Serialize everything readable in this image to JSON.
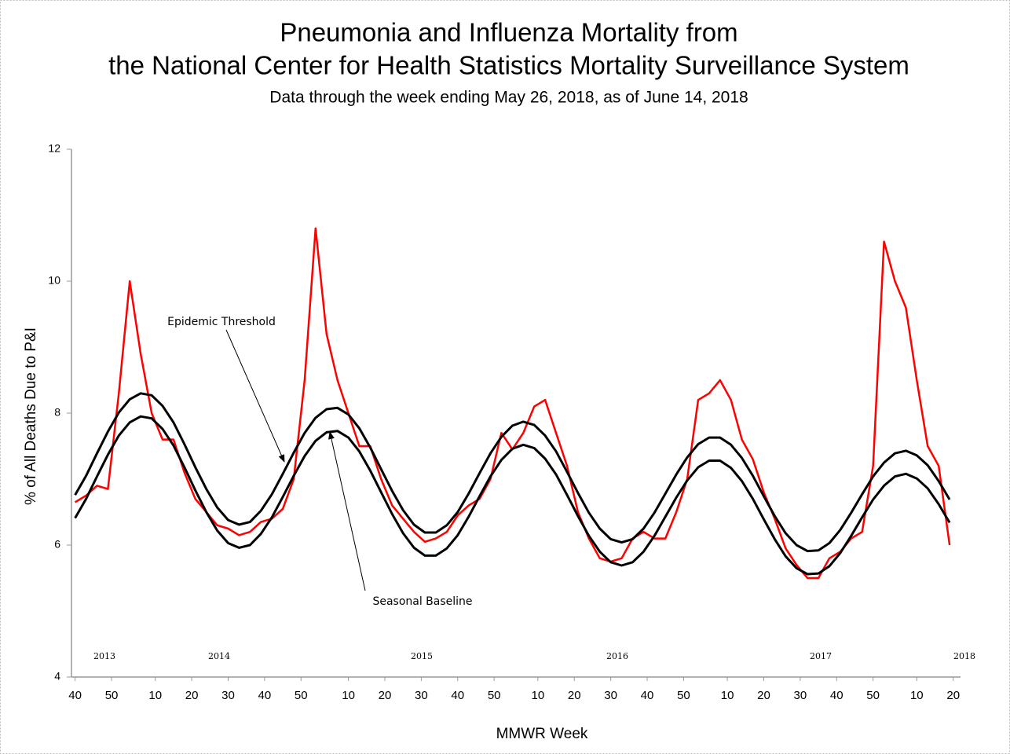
{
  "chart_data": {
    "type": "line",
    "title": [
      "Pneumonia and Influenza Mortality from",
      "the National Center for Health Statistics Mortality Surveillance System"
    ],
    "subtitle": "Data through the week ending May 26, 2018, as of June 14, 2018",
    "ylabel": "% of All Deaths Due to P&I",
    "xlabel": "MMWR Week",
    "year_labels": [
      "2013",
      "2014",
      "2015",
      "2016",
      "2017",
      "2018"
    ],
    "xlim": [
      -1,
      243
    ],
    "ylim": [
      4,
      12
    ],
    "yticks": [
      4,
      6,
      8,
      10,
      12
    ],
    "xticks": [
      {
        "value": 0,
        "label": "40"
      },
      {
        "value": 10,
        "label": "50"
      },
      {
        "value": 22,
        "label": "10"
      },
      {
        "value": 32,
        "label": "20"
      },
      {
        "value": 42,
        "label": "30"
      },
      {
        "value": 52,
        "label": "40"
      },
      {
        "value": 62,
        "label": "50"
      },
      {
        "value": 75,
        "label": "10"
      },
      {
        "value": 85,
        "label": "20"
      },
      {
        "value": 95,
        "label": "30"
      },
      {
        "value": 105,
        "label": "40"
      },
      {
        "value": 115,
        "label": "50"
      },
      {
        "value": 127,
        "label": "10"
      },
      {
        "value": 137,
        "label": "20"
      },
      {
        "value": 147,
        "label": "30"
      },
      {
        "value": 157,
        "label": "40"
      },
      {
        "value": 167,
        "label": "50"
      },
      {
        "value": 179,
        "label": "10"
      },
      {
        "value": 189,
        "label": "20"
      },
      {
        "value": 199,
        "label": "30"
      },
      {
        "value": 209,
        "label": "40"
      },
      {
        "value": 219,
        "label": "50"
      },
      {
        "value": 231,
        "label": "10"
      },
      {
        "value": 241,
        "label": "20"
      }
    ],
    "grid": false,
    "x": [
      0,
      3,
      6,
      9,
      12,
      15,
      18,
      21,
      24,
      27,
      30,
      33,
      36,
      39,
      42,
      45,
      48,
      51,
      54,
      57,
      60,
      63,
      66,
      69,
      72,
      75,
      78,
      81,
      84,
      87,
      90,
      93,
      96,
      99,
      102,
      105,
      108,
      111,
      114,
      117,
      120,
      123,
      126,
      129,
      132,
      135,
      138,
      141,
      144,
      147,
      150,
      153,
      156,
      159,
      162,
      165,
      168,
      171,
      174,
      177,
      180,
      183,
      186,
      189,
      192,
      195,
      198,
      201,
      204,
      207,
      210,
      213,
      216,
      219,
      222,
      225,
      228,
      231,
      234,
      237,
      240
    ],
    "series": [
      {
        "color": "#ff0000",
        "values": [
          6.65,
          6.75,
          6.9,
          6.85,
          8.3,
          10.0,
          8.9,
          8.0,
          7.6,
          7.6,
          7.1,
          6.7,
          6.5,
          6.3,
          6.25,
          6.15,
          6.2,
          6.35,
          6.4,
          6.55,
          7.0,
          8.5,
          10.8,
          9.2,
          8.5,
          8.0,
          7.5,
          7.5,
          7.0,
          6.6,
          6.4,
          6.2,
          6.05,
          6.1,
          6.2,
          6.45,
          6.6,
          6.7,
          7.0,
          7.7,
          7.45,
          7.7,
          8.1,
          8.2,
          7.7,
          7.2,
          6.5,
          6.1,
          5.8,
          5.75,
          5.8,
          6.1,
          6.2,
          6.1,
          6.1,
          6.5,
          7.0,
          8.2,
          8.3,
          8.5,
          8.2,
          7.6,
          7.3,
          6.8,
          6.4,
          5.95,
          5.7,
          5.5,
          5.5,
          5.8,
          5.9,
          6.1,
          6.2,
          7.2,
          10.6,
          10.0,
          9.6,
          8.5,
          7.5,
          7.2,
          6.0
        ]
      },
      {
        "name": "Epidemic Threshold",
        "color": "#000000",
        "values": [
          6.76,
          7.05,
          7.39,
          7.72,
          8.01,
          8.21,
          8.3,
          8.27,
          8.11,
          7.86,
          7.53,
          7.18,
          6.85,
          6.57,
          6.38,
          6.31,
          6.35,
          6.52,
          6.77,
          7.08,
          7.4,
          7.7,
          7.93,
          8.06,
          8.08,
          7.98,
          7.77,
          7.48,
          7.15,
          6.82,
          6.53,
          6.31,
          6.19,
          6.19,
          6.3,
          6.5,
          6.78,
          7.09,
          7.39,
          7.64,
          7.81,
          7.87,
          7.82,
          7.66,
          7.42,
          7.11,
          6.79,
          6.49,
          6.25,
          6.09,
          6.04,
          6.09,
          6.25,
          6.49,
          6.78,
          7.07,
          7.33,
          7.53,
          7.63,
          7.63,
          7.52,
          7.32,
          7.05,
          6.74,
          6.44,
          6.18,
          6.0,
          5.91,
          5.92,
          6.03,
          6.23,
          6.49,
          6.77,
          7.04,
          7.25,
          7.39,
          7.43,
          7.36,
          7.21,
          6.97,
          6.69
        ]
      },
      {
        "name": "Seasonal Baseline",
        "color": "#000000",
        "values": [
          6.41,
          6.7,
          7.04,
          7.37,
          7.66,
          7.86,
          7.95,
          7.92,
          7.76,
          7.51,
          7.18,
          6.83,
          6.5,
          6.22,
          6.03,
          5.96,
          6.0,
          6.17,
          6.42,
          6.73,
          7.05,
          7.35,
          7.58,
          7.71,
          7.73,
          7.63,
          7.42,
          7.13,
          6.8,
          6.47,
          6.18,
          5.96,
          5.84,
          5.84,
          5.95,
          6.15,
          6.43,
          6.74,
          7.04,
          7.29,
          7.46,
          7.52,
          7.47,
          7.31,
          7.07,
          6.76,
          6.44,
          6.14,
          5.9,
          5.74,
          5.69,
          5.74,
          5.9,
          6.14,
          6.43,
          6.72,
          6.98,
          7.18,
          7.28,
          7.28,
          7.17,
          6.97,
          6.7,
          6.39,
          6.09,
          5.83,
          5.65,
          5.56,
          5.57,
          5.68,
          5.88,
          6.14,
          6.42,
          6.69,
          6.9,
          7.04,
          7.08,
          7.01,
          6.86,
          6.62,
          6.34
        ]
      }
    ]
  }
}
